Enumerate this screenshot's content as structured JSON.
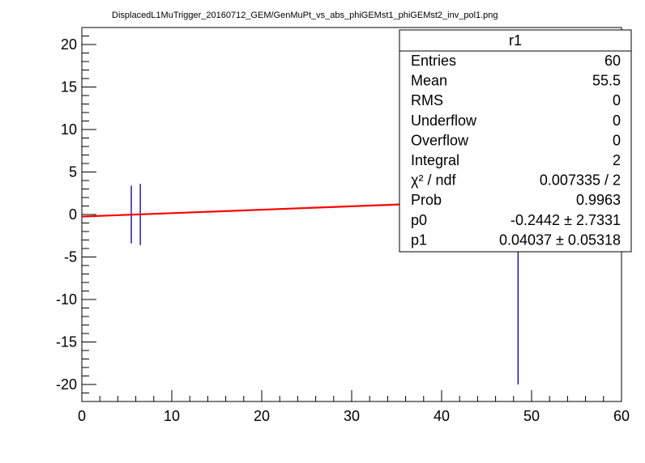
{
  "chart_data": {
    "type": "scatter",
    "title": "DisplacedL1MuTrigger_20160712_GEM/GenMuPt_vs_abs_phiGEMst1_phiGEMst2_inv_pol1.png",
    "xlabel": "",
    "ylabel": "",
    "xlim": [
      0,
      60
    ],
    "ylim": [
      -22,
      22
    ],
    "x_ticks": [
      "0",
      "10",
      "20",
      "30",
      "40",
      "50",
      "60"
    ],
    "y_ticks": [
      "-20",
      "-15",
      "-10",
      "-5",
      "0",
      "5",
      "10",
      "15",
      "20"
    ],
    "grid": false,
    "points": [
      {
        "x": 5.5,
        "y": 0.0,
        "ylow": -3.4,
        "yhigh": 3.4
      },
      {
        "x": 6.5,
        "y": 0.0,
        "ylow": -3.6,
        "yhigh": 3.6
      },
      {
        "x": 48.5,
        "y": 0.0,
        "ylow": -20.0,
        "yhigh": 20.0
      }
    ],
    "fit": {
      "x0": 0,
      "x1": 60,
      "p0": -0.2442,
      "p1": 0.04037,
      "color": "#ff0000"
    },
    "marker_color": "#000099",
    "legend_placement": "top-right",
    "stats": {
      "name": "r1",
      "rows": [
        {
          "label": "Entries",
          "value": "60"
        },
        {
          "label": "Mean",
          "value": "55.5"
        },
        {
          "label": "RMS",
          "value": "0"
        },
        {
          "label": "Underflow",
          "value": "0"
        },
        {
          "label": "Overflow",
          "value": "0"
        },
        {
          "label": "Integral",
          "value": "2"
        },
        {
          "label": "χ² / ndf",
          "value": "0.007335 / 2"
        },
        {
          "label": "Prob",
          "value": "0.9963"
        },
        {
          "label": "p0",
          "value": "-0.2442 ± 2.7331"
        },
        {
          "label": "p1",
          "value": "0.04037 ± 0.05318"
        }
      ]
    }
  }
}
